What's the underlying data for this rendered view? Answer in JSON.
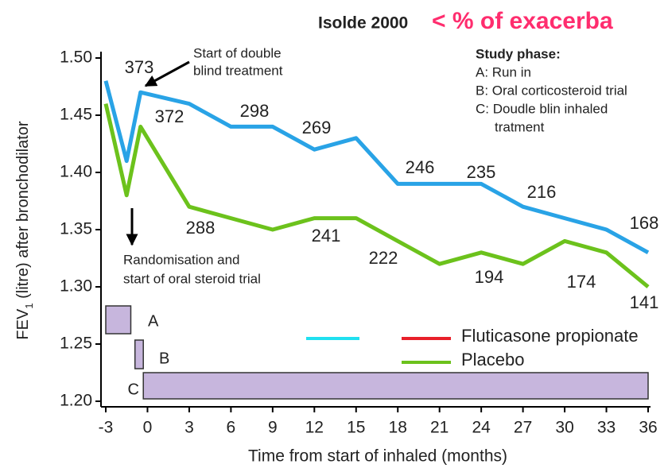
{
  "chart_data": {
    "type": "line",
    "title": "Isolde 2000",
    "subtitle": "< % of exacerba",
    "y_label": {
      "main": "FEV",
      "subscript": "1",
      "rest": " (litre) after bronchodilator"
    },
    "x_label": "Time from start of inhaled (months)",
    "xlim": [
      -3,
      36
    ],
    "xticks": [
      -3,
      0,
      3,
      6,
      9,
      12,
      15,
      18,
      21,
      24,
      27,
      30,
      33,
      36
    ],
    "ylim": [
      1.2,
      1.5
    ],
    "yticks": [
      {
        "value": 1.2,
        "label": "1.20"
      },
      {
        "value": 1.25,
        "label": "1.25"
      },
      {
        "value": 1.3,
        "label": "1.30"
      },
      {
        "value": 1.35,
        "label": "1.35"
      },
      {
        "value": 1.4,
        "label": "1.40"
      },
      {
        "value": 1.45,
        "label": "1.45"
      },
      {
        "value": 1.5,
        "label": "1.50"
      }
    ],
    "x": [
      -3,
      -1.5,
      -0.5,
      3,
      6,
      9,
      12,
      15,
      18,
      21,
      24,
      27,
      30,
      33,
      36
    ],
    "series": [
      {
        "name": "Fluticasone propionate",
        "color": "#29a3e6",
        "legend_color": "#e8202a",
        "values": [
          1.48,
          1.41,
          1.47,
          1.46,
          1.44,
          1.44,
          1.42,
          1.43,
          1.39,
          1.39,
          1.39,
          1.37,
          1.36,
          1.35,
          1.33
        ]
      },
      {
        "name": "Placebo",
        "color": "#6cc21c",
        "legend_color": "#6cc21c",
        "values": [
          1.46,
          1.38,
          1.44,
          1.37,
          1.36,
          1.35,
          1.36,
          1.36,
          1.34,
          1.32,
          1.33,
          1.32,
          1.34,
          1.33,
          1.3
        ]
      }
    ],
    "annotations": [
      "373",
      "372",
      "298",
      "288",
      "269",
      "241",
      "246",
      "222",
      "235",
      "194",
      "216",
      "174",
      "168",
      "141"
    ],
    "notes": {
      "double_blind": [
        "Start of double",
        "blind treatment"
      ],
      "randomisation": [
        "Randomisation and",
        "start of oral steroid trial"
      ]
    },
    "study_phase": {
      "title": "Study phase:",
      "items": [
        "A: Run in",
        "B: Oral corticosteroid trial",
        "C: Doudle blin inhaled",
        "tratment"
      ]
    },
    "phases": [
      {
        "label": "A",
        "start": -3,
        "end": -1.2
      },
      {
        "label": "B",
        "start": -0.9,
        "end": -0.3
      },
      {
        "label": "C",
        "start": -0.3,
        "end": 36
      }
    ]
  }
}
